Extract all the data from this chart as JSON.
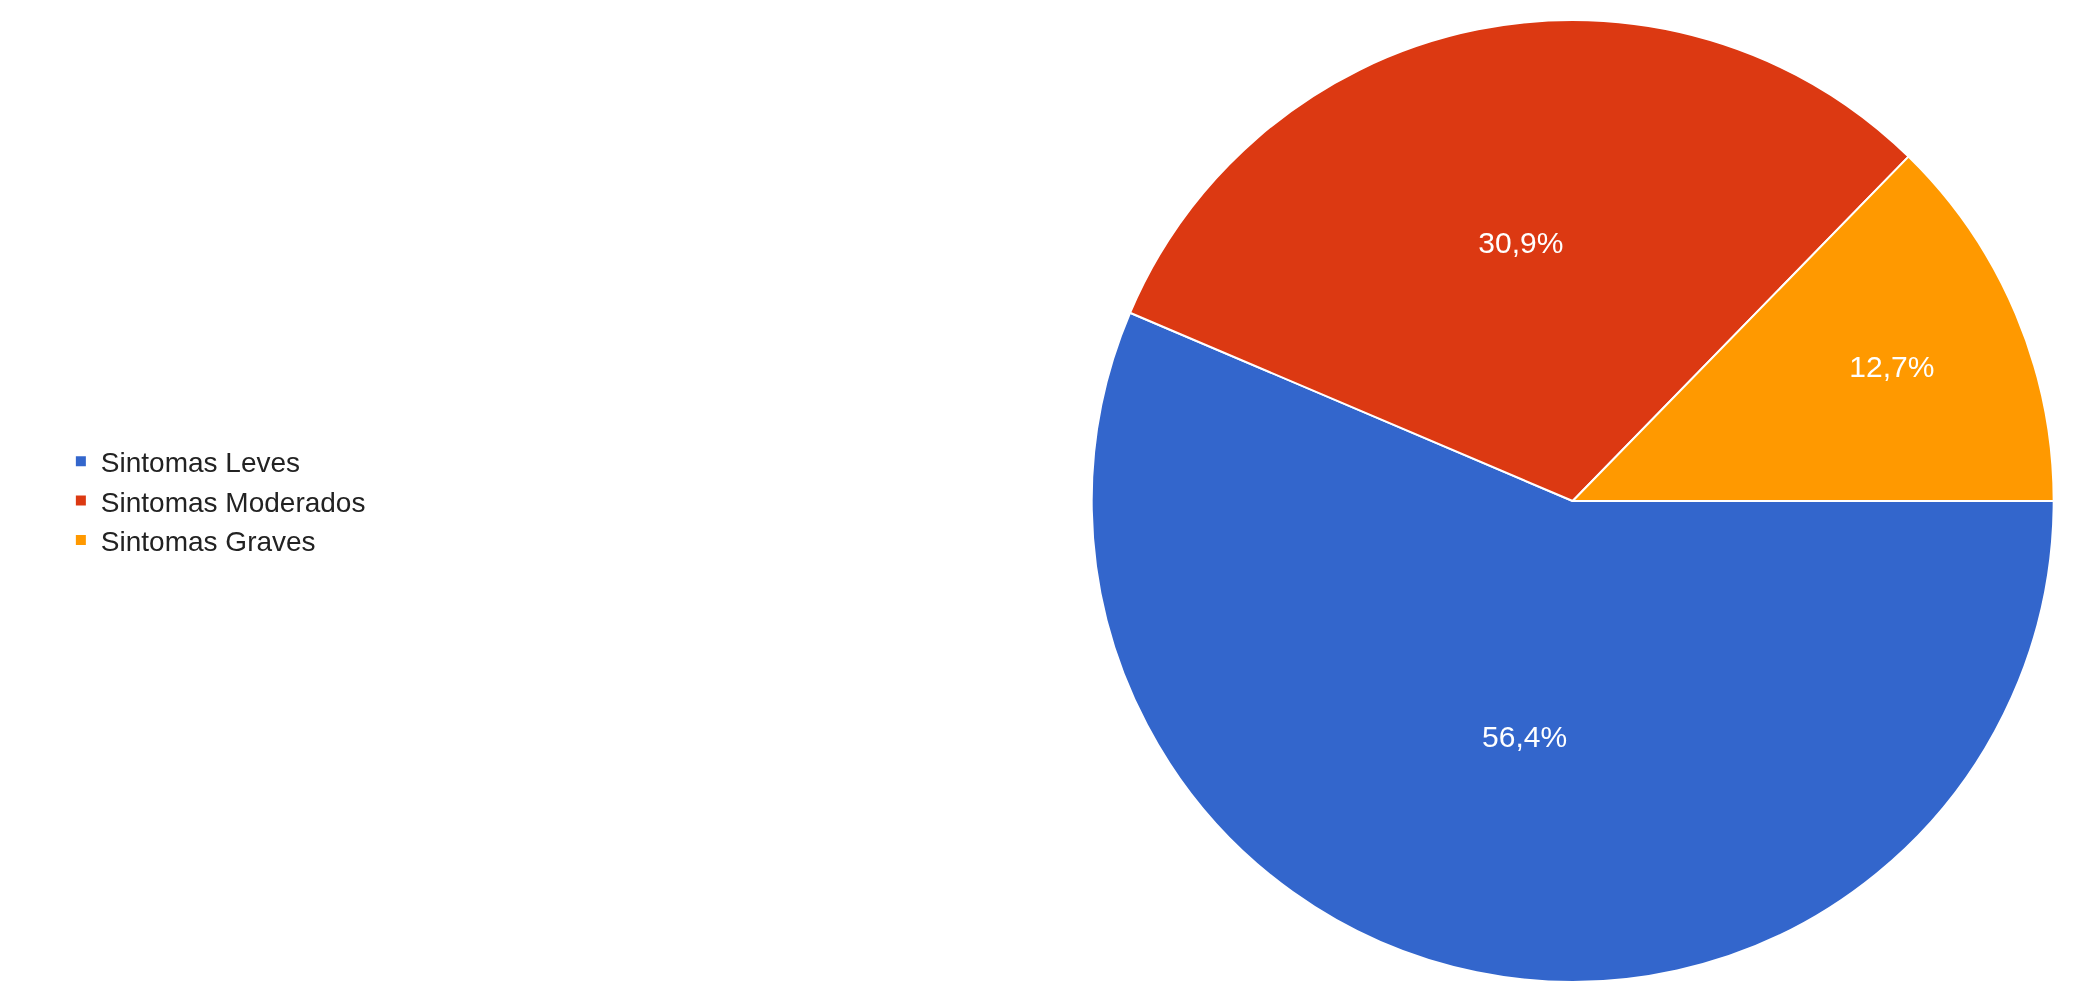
{
  "chart_data": {
    "type": "pie",
    "categories": [
      "Sintomas Leves",
      "Sintomas Moderados",
      "Sintomas Graves"
    ],
    "values": [
      56.4,
      30.9,
      12.7
    ],
    "colors": [
      "#3366cc",
      "#dc3912",
      "#ff9900"
    ],
    "value_labels": [
      "56,4%",
      "30,9%",
      "12,7%"
    ],
    "legend": "left"
  }
}
